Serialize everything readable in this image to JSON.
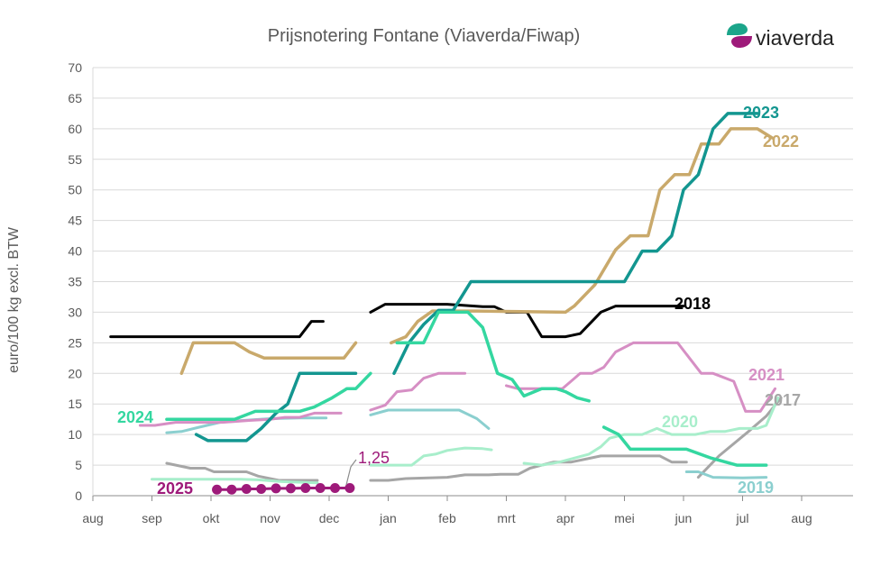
{
  "chart_data": {
    "type": "line",
    "title": "Prijsnotering Fontane (Viaverda/Fiwap)",
    "brand": "viaverda",
    "ylabel": "euro/100 kg excl. BTW",
    "xlabel": "",
    "ylim": [
      0,
      70
    ],
    "yticks": [
      0,
      5,
      10,
      15,
      20,
      25,
      30,
      35,
      40,
      45,
      50,
      55,
      60,
      65,
      70
    ],
    "x_unit": "months since 1 August of the season start",
    "xlim": [
      0,
      12.7
    ],
    "months": [
      "aug",
      "sep",
      "okt",
      "nov",
      "dec",
      "jan",
      "feb",
      "mrt",
      "apr",
      "mei",
      "jun",
      "jul",
      "aug"
    ],
    "grid": "horizontal",
    "legend": "inline labels at line ends",
    "annotation": "1,25",
    "series": [
      {
        "name": "2018",
        "color": "#000000",
        "width": 3,
        "segments": [
          [
            [
              0.3,
              26
            ],
            [
              3.5,
              26
            ],
            [
              3.7,
              28.5
            ],
            [
              3.9,
              28.5
            ]
          ],
          [
            [
              4.7,
              30
            ],
            [
              4.95,
              31.3
            ],
            [
              6.0,
              31.3
            ],
            [
              6.6,
              30.9
            ],
            [
              6.8,
              30.9
            ],
            [
              7.0,
              30
            ],
            [
              7.35,
              30
            ],
            [
              7.6,
              26
            ],
            [
              8.0,
              26
            ],
            [
              8.25,
              26.5
            ],
            [
              8.6,
              30
            ],
            [
              8.85,
              31
            ],
            [
              9.8,
              31
            ],
            [
              10.0,
              31
            ]
          ]
        ]
      },
      {
        "name": "2017",
        "color": "#a6a6a6",
        "width": 3,
        "segments": [
          [
            [
              1.25,
              5.3
            ],
            [
              1.65,
              4.5
            ],
            [
              1.9,
              4.5
            ],
            [
              2.05,
              3.9
            ],
            [
              2.6,
              3.9
            ],
            [
              2.8,
              3.2
            ],
            [
              3.15,
              2.5
            ],
            [
              3.8,
              2.5
            ]
          ],
          [
            [
              4.7,
              2.5
            ],
            [
              5.0,
              2.5
            ],
            [
              5.3,
              2.8
            ],
            [
              6.0,
              3
            ],
            [
              6.3,
              3.4
            ],
            [
              6.7,
              3.4
            ],
            [
              6.9,
              3.5
            ],
            [
              7.2,
              3.5
            ],
            [
              7.4,
              4.5
            ],
            [
              7.8,
              5.5
            ],
            [
              8.1,
              5.5
            ],
            [
              8.4,
              6.1
            ],
            [
              8.6,
              6.5
            ],
            [
              9.6,
              6.5
            ],
            [
              9.8,
              5.5
            ],
            [
              10.05,
              5.5
            ]
          ],
          [
            [
              10.25,
              3
            ],
            [
              10.6,
              6.5
            ],
            [
              11.1,
              10.5
            ],
            [
              11.4,
              13
            ],
            [
              11.65,
              16
            ]
          ]
        ]
      },
      {
        "name": "2019",
        "color": "#8bcfcf",
        "width": 3,
        "segments": [
          [
            [
              1.25,
              10.3
            ],
            [
              1.5,
              10.5
            ],
            [
              1.8,
              11.2
            ],
            [
              2.2,
              12.1
            ],
            [
              3.0,
              12.6
            ],
            [
              3.5,
              12.7
            ],
            [
              3.95,
              12.7
            ]
          ],
          [
            [
              4.7,
              13.2
            ],
            [
              5.0,
              14
            ],
            [
              6.2,
              14
            ],
            [
              6.5,
              12.6
            ],
            [
              6.7,
              11
            ]
          ],
          [
            [
              10.05,
              3.9
            ],
            [
              10.25,
              3.9
            ],
            [
              10.5,
              3
            ],
            [
              11.0,
              2.9
            ],
            [
              11.4,
              3
            ]
          ]
        ]
      },
      {
        "name": "2020",
        "color": "#a8eecb",
        "width": 3,
        "segments": [
          [
            [
              1.0,
              2.7
            ],
            [
              2.5,
              2.7
            ],
            [
              2.8,
              2.6
            ],
            [
              3.2,
              2.3
            ],
            [
              3.8,
              2.1
            ]
          ],
          [
            [
              4.7,
              5
            ],
            [
              5.4,
              5
            ],
            [
              5.6,
              6.5
            ],
            [
              5.8,
              6.8
            ],
            [
              6.0,
              7.4
            ],
            [
              6.3,
              7.8
            ],
            [
              6.6,
              7.7
            ],
            [
              6.75,
              7.5
            ]
          ],
          [
            [
              7.3,
              5.3
            ],
            [
              7.6,
              5
            ],
            [
              7.9,
              5.5
            ],
            [
              8.4,
              6.8
            ],
            [
              8.6,
              8
            ],
            [
              8.75,
              9.4
            ],
            [
              9.0,
              10
            ],
            [
              9.3,
              10
            ],
            [
              9.55,
              11
            ],
            [
              9.8,
              10
            ],
            [
              10.2,
              10
            ],
            [
              10.45,
              10.5
            ],
            [
              10.7,
              10.5
            ],
            [
              10.95,
              11
            ],
            [
              11.25,
              11
            ],
            [
              11.4,
              11.5
            ],
            [
              11.6,
              16
            ]
          ]
        ]
      },
      {
        "name": "2021",
        "color": "#d68fc4",
        "width": 3,
        "segments": [
          [
            [
              0.8,
              11.5
            ],
            [
              1.05,
              11.5
            ],
            [
              1.4,
              12
            ],
            [
              2.2,
              12
            ],
            [
              2.65,
              12.3
            ],
            [
              3.0,
              12.5
            ],
            [
              3.25,
              12.8
            ],
            [
              3.5,
              12.8
            ],
            [
              3.75,
              13.5
            ],
            [
              4.2,
              13.5
            ]
          ],
          [
            [
              4.7,
              14
            ],
            [
              4.95,
              14.8
            ],
            [
              5.15,
              17
            ],
            [
              5.4,
              17.3
            ],
            [
              5.6,
              19.2
            ],
            [
              5.85,
              20
            ],
            [
              6.3,
              20
            ]
          ],
          [
            [
              7.0,
              18
            ],
            [
              7.2,
              17.5
            ],
            [
              7.65,
              17.5
            ],
            [
              7.95,
              17.5
            ],
            [
              8.25,
              20
            ],
            [
              8.45,
              20
            ],
            [
              8.65,
              21
            ],
            [
              8.85,
              23.5
            ],
            [
              9.15,
              25
            ],
            [
              9.9,
              25
            ],
            [
              10.3,
              20
            ],
            [
              10.5,
              20
            ],
            [
              10.85,
              18.7
            ],
            [
              11.05,
              13.8
            ],
            [
              11.3,
              13.8
            ],
            [
              11.55,
              17.5
            ]
          ]
        ]
      },
      {
        "name": "2022",
        "color": "#c9a96b",
        "width": 3.5,
        "segments": [
          [
            [
              1.5,
              20
            ],
            [
              1.7,
              25
            ],
            [
              2.4,
              25
            ],
            [
              2.65,
              23.5
            ],
            [
              2.9,
              22.5
            ],
            [
              4.25,
              22.5
            ],
            [
              4.45,
              25
            ]
          ],
          [
            [
              5.05,
              25
            ],
            [
              5.3,
              26
            ],
            [
              5.5,
              28.5
            ],
            [
              5.75,
              30.2
            ],
            [
              6.5,
              30.2
            ],
            [
              8.0,
              30
            ],
            [
              8.15,
              31
            ],
            [
              8.5,
              34.5
            ],
            [
              8.85,
              40.2
            ],
            [
              9.1,
              42.5
            ],
            [
              9.4,
              42.5
            ],
            [
              9.6,
              50
            ],
            [
              9.85,
              52.5
            ],
            [
              10.1,
              52.5
            ],
            [
              10.3,
              57.5
            ],
            [
              10.6,
              57.5
            ],
            [
              10.8,
              60
            ],
            [
              11.25,
              60
            ],
            [
              11.5,
              58.5
            ]
          ]
        ]
      },
      {
        "name": "2023",
        "color": "#139690",
        "width": 3.5,
        "segments": [
          [
            [
              1.75,
              10
            ],
            [
              1.95,
              9
            ],
            [
              2.6,
              9
            ],
            [
              2.85,
              11
            ],
            [
              3.1,
              13.5
            ],
            [
              3.3,
              15
            ],
            [
              3.5,
              20
            ],
            [
              4.45,
              20
            ]
          ],
          [
            [
              5.1,
              20
            ],
            [
              5.35,
              25
            ],
            [
              5.6,
              28
            ],
            [
              5.85,
              30.3
            ],
            [
              6.1,
              30.3
            ],
            [
              6.4,
              35
            ],
            [
              9.0,
              35
            ],
            [
              9.3,
              40
            ],
            [
              9.55,
              40
            ],
            [
              9.8,
              42.5
            ],
            [
              10.0,
              50
            ],
            [
              10.25,
              52.5
            ],
            [
              10.5,
              60
            ],
            [
              10.75,
              62.5
            ],
            [
              11.25,
              62.5
            ]
          ]
        ]
      },
      {
        "name": "2024",
        "color": "#34d7a0",
        "width": 3.5,
        "segments": [
          [
            [
              1.25,
              12.5
            ],
            [
              2.4,
              12.5
            ],
            [
              2.75,
              13.8
            ],
            [
              3.5,
              13.8
            ],
            [
              3.75,
              14.5
            ],
            [
              4.05,
              16
            ],
            [
              4.3,
              17.5
            ],
            [
              4.45,
              17.5
            ],
            [
              4.7,
              20
            ]
          ],
          [
            [
              5.15,
              25
            ],
            [
              5.6,
              25
            ],
            [
              5.85,
              30
            ],
            [
              6.35,
              30
            ],
            [
              6.6,
              27.5
            ],
            [
              6.85,
              20
            ],
            [
              7.1,
              19
            ],
            [
              7.3,
              16.3
            ],
            [
              7.6,
              17.5
            ],
            [
              7.85,
              17.5
            ],
            [
              8.0,
              17
            ],
            [
              8.2,
              16
            ],
            [
              8.4,
              15.5
            ]
          ],
          [
            [
              8.65,
              11.2
            ],
            [
              8.9,
              10
            ],
            [
              9.1,
              7.6
            ],
            [
              10.05,
              7.6
            ],
            [
              10.45,
              6.2
            ],
            [
              10.9,
              5
            ],
            [
              11.4,
              5
            ]
          ]
        ]
      },
      {
        "name": "2025",
        "color": "#9e1a7a",
        "width": 3,
        "markers": true,
        "segments": [
          [
            [
              2.1,
              1
            ],
            [
              2.35,
              1
            ],
            [
              2.6,
              1.1
            ],
            [
              2.85,
              1.1
            ],
            [
              3.1,
              1.2
            ],
            [
              3.35,
              1.2
            ],
            [
              3.6,
              1.25
            ],
            [
              3.85,
              1.25
            ],
            [
              4.1,
              1.25
            ],
            [
              4.35,
              1.25
            ]
          ]
        ]
      }
    ]
  }
}
